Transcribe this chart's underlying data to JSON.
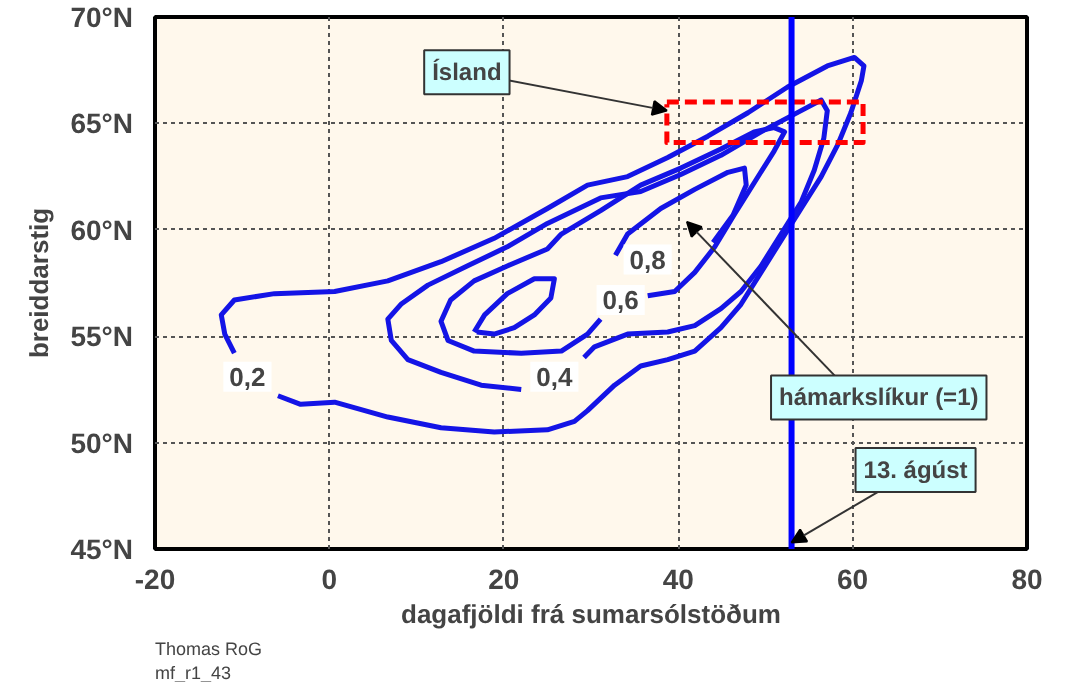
{
  "chart_data": {
    "type": "line",
    "xlabel": "dagafjöldi frá sumarsólstöðum",
    "ylabel": "breiddarstig",
    "xlim": [
      -20,
      80
    ],
    "ylim": [
      45,
      70
    ],
    "xticks": [
      -20,
      0,
      20,
      40,
      60,
      80
    ],
    "yticks": [
      {
        "value": 45,
        "label": "45°N"
      },
      {
        "value": 50,
        "label": "50°N"
      },
      {
        "value": 55,
        "label": "55°N"
      },
      {
        "value": 60,
        "label": "60°N"
      },
      {
        "value": 65,
        "label": "65°N"
      },
      {
        "value": 70,
        "label": "70°N"
      }
    ],
    "grid": true,
    "marker": "none",
    "line_style": "solid",
    "series": [
      {
        "color": "#1414e6",
        "x": [
          -5.9,
          -3.3,
          0.6,
          6.7,
          12.8,
          18.9,
          25.0,
          28.1,
          29.6,
          32.7,
          35.7,
          38.8,
          41.9,
          44.9,
          47.2,
          49.5,
          51.8,
          54.1,
          56.4,
          58.3,
          59.8,
          61.0,
          61.3,
          60.2,
          57.1,
          52.5,
          48.0,
          43.4,
          38.8,
          34.2,
          29.6,
          25.0,
          18.9,
          12.8,
          6.7,
          0.6,
          -6.3,
          -10.9,
          -12.4,
          -12.0,
          -10.9
        ],
        "values": [
          52.2,
          51.8,
          51.9,
          51.2,
          50.7,
          50.5,
          50.6,
          51.0,
          51.5,
          52.7,
          53.6,
          53.9,
          54.3,
          55.4,
          56.5,
          58.0,
          59.5,
          61.0,
          62.5,
          64.0,
          65.5,
          67.0,
          67.7,
          68.1,
          67.7,
          66.7,
          65.5,
          64.4,
          63.4,
          62.5,
          62.1,
          61.0,
          59.6,
          58.5,
          57.6,
          57.1,
          57.0,
          56.7,
          56.0,
          55.1,
          54.2
        ]
      },
      {
        "color": "#1414e6",
        "x": [
          22.0,
          17.4,
          12.8,
          9.0,
          7.1,
          6.7,
          8.2,
          11.3,
          15.8,
          20.4,
          25.0,
          31.1,
          35.7,
          40.3,
          44.9,
          49.5,
          54.1,
          56.4,
          57.1,
          56.7,
          55.6,
          54.1,
          51.8,
          49.5,
          47.2,
          44.9,
          41.9,
          38.8,
          34.2,
          30.4,
          29.2
        ],
        "values": [
          52.5,
          52.7,
          53.3,
          53.9,
          54.8,
          55.8,
          56.5,
          57.4,
          58.3,
          59.2,
          60.3,
          61.5,
          61.8,
          62.6,
          63.5,
          64.6,
          65.6,
          66.1,
          65.6,
          64.3,
          62.8,
          61.3,
          59.8,
          58.3,
          57.1,
          56.3,
          55.5,
          55.2,
          55.1,
          54.5,
          54.0
        ]
      },
      {
        "color": "#1414e6",
        "x": [
          36.5,
          39.6,
          41.9,
          44.2,
          46.4,
          48.7,
          51.0,
          52.2,
          51.0,
          48.7,
          44.9,
          40.3,
          35.7,
          31.1,
          26.6,
          25.0,
          20.4,
          16.6,
          13.9,
          12.8,
          13.6,
          16.6,
          22.0,
          26.6,
          29.6,
          31.1
        ],
        "values": [
          56.9,
          57.1,
          58.0,
          59.2,
          60.7,
          62.2,
          63.7,
          64.6,
          64.8,
          64.6,
          63.8,
          62.9,
          62.1,
          60.9,
          59.8,
          59.1,
          58.3,
          57.6,
          56.7,
          55.7,
          54.8,
          54.3,
          54.2,
          54.3,
          55.1,
          55.8
        ]
      },
      {
        "color": "#1414e6",
        "x": [
          32.8,
          34.2,
          38.0,
          41.9,
          45.7,
          47.6,
          47.8,
          46.3,
          44.0
        ],
        "values": [
          58.8,
          59.8,
          61.0,
          61.9,
          62.7,
          62.9,
          62.1,
          60.7,
          59.4
        ]
      },
      {
        "color": "#1414e6",
        "x": [
          16.6,
          17.8,
          20.4,
          23.5,
          25.8,
          25.4,
          23.5,
          21.2,
          18.9,
          16.9
        ],
        "values": [
          55.2,
          56.0,
          57.0,
          57.7,
          57.7,
          56.8,
          56.0,
          55.4,
          55.1,
          55.2
        ]
      },
      {
        "color": "#ff0000",
        "line_style": "dashed",
        "x": [
          38.7,
          61.2,
          61.2,
          38.7,
          38.7
        ],
        "values": [
          66.0,
          66.0,
          64.1,
          64.1,
          65.9
        ]
      }
    ],
    "ref_lines": [
      {
        "axis": "x",
        "value": 53,
        "label": "13. ágúst",
        "color": "#0000ff"
      }
    ],
    "annotations": [
      {
        "text": "0,2",
        "x": -9.4,
        "y": 53.1
      },
      {
        "text": "0,4",
        "x": 25.8,
        "y": 53.1
      },
      {
        "text": "0,6",
        "x": 33.4,
        "y": 56.7
      },
      {
        "text": "0,8",
        "x": 36.5,
        "y": 58.6
      },
      {
        "text": "Ísland",
        "x": 38.7,
        "y": 65.6
      },
      "hámarkslíkur (=1)",
      "Thomas RoG",
      "mf_r1_43"
    ]
  }
}
